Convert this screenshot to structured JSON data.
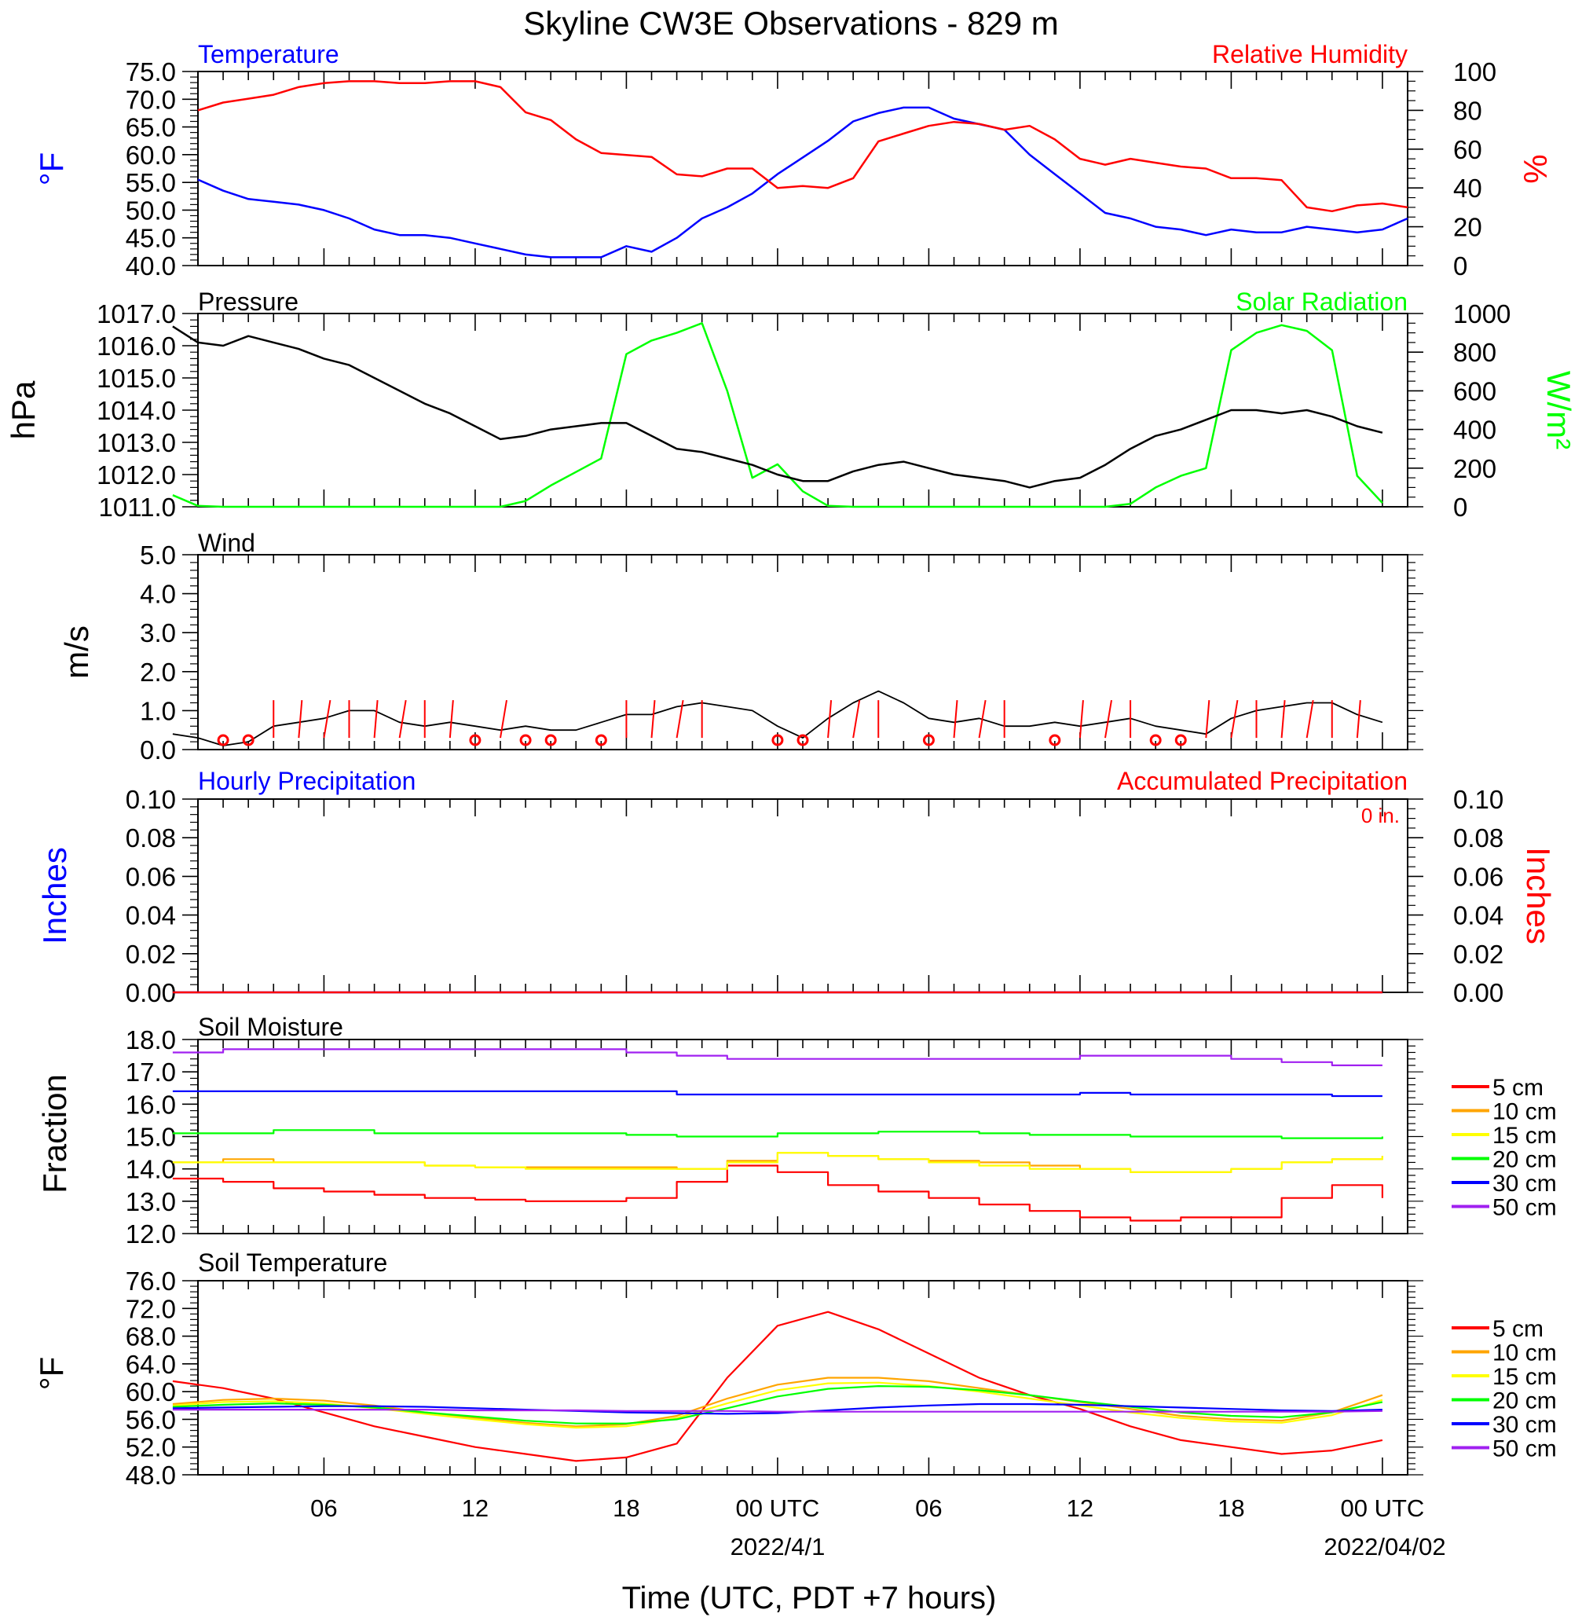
{
  "title": "Skyline CW3E Observations - 829 m",
  "x_axis": {
    "label": "Time (UTC, PDT +7 hours)",
    "hour_ticks": [
      "06",
      "12",
      "18",
      "00 UTC",
      "06",
      "12",
      "18",
      "00 UTC"
    ],
    "dates": [
      "2022/4/1",
      "2022/04/02"
    ]
  },
  "colors": {
    "temperature": "#0000ff",
    "humidity": "#ff0000",
    "pressure": "#000000",
    "solar": "#00ff00",
    "wind": "#000000",
    "wind_barbs": "#ff0000",
    "hourly_precip": "#0000ff",
    "accum_precip": "#ff0000",
    "soil": {
      "5 cm": "#ff0000",
      "10 cm": "#ffa500",
      "15 cm": "#ffff00",
      "20 cm": "#00ff00",
      "30 cm": "#0000ff",
      "50 cm": "#a020f0"
    }
  },
  "chart_data": [
    {
      "type": "line",
      "panel": "temperature_humidity",
      "title_left": "Temperature",
      "title_right": "Relative Humidity",
      "ylabel_left": "°F",
      "ylabel_right": "%",
      "y_ticks_left": [
        "75.0",
        "70.0",
        "65.0",
        "60.0",
        "55.0",
        "50.0",
        "45.0",
        "40.0"
      ],
      "y_ticks_right": [
        "100",
        "80",
        "60",
        "40",
        "20",
        "0"
      ],
      "ylim_left": [
        40,
        75
      ],
      "ylim_right": [
        0,
        100
      ],
      "x_hours": [
        1,
        2,
        3,
        4,
        5,
        6,
        7,
        8,
        9,
        10,
        11,
        12,
        13,
        14,
        15,
        16,
        17,
        18,
        19,
        20,
        21,
        22,
        23,
        24,
        25,
        26,
        27,
        28,
        29,
        30,
        31,
        32,
        33,
        34,
        35,
        36,
        37,
        38,
        39,
        40,
        41,
        42,
        43,
        44,
        45,
        46,
        47,
        48,
        49
      ],
      "series": [
        {
          "name": "Temperature",
          "axis": "left",
          "values": [
            55.5,
            53.5,
            52,
            51.5,
            51,
            50,
            48.5,
            46.5,
            45.5,
            45.5,
            45,
            44,
            43,
            42,
            41.5,
            41.5,
            41.5,
            43.5,
            42.5,
            45,
            48.5,
            50.5,
            53,
            56.5,
            59.5,
            62.5,
            66,
            67.5,
            68.5,
            68.5,
            66.5,
            65.5,
            64.5,
            60,
            56.5,
            53,
            49.5,
            48.5,
            47,
            46.5,
            45.5,
            46.5,
            46,
            46,
            47,
            46.5,
            46,
            46.5,
            48.5
          ]
        },
        {
          "name": "Relative Humidity",
          "axis": "right",
          "values": [
            80,
            84,
            86,
            88,
            92,
            94,
            95,
            95,
            94,
            94,
            95,
            95,
            92,
            79,
            75,
            65,
            58,
            57,
            56,
            47,
            46,
            50,
            50,
            40,
            41,
            40,
            45,
            64,
            68,
            72,
            74,
            73,
            70,
            72,
            65,
            55,
            52,
            55,
            53,
            51,
            50,
            45,
            45,
            44,
            30,
            28,
            31,
            32,
            30
          ]
        }
      ]
    },
    {
      "type": "line",
      "panel": "pressure_solar",
      "title_left": "Pressure",
      "title_right": "Solar Radiation",
      "ylabel_left": "hPa",
      "ylabel_right": "W/m²",
      "y_ticks_left": [
        "1017.0",
        "1016.0",
        "1015.0",
        "1014.0",
        "1013.0",
        "1012.0",
        "1011.0"
      ],
      "y_ticks_right": [
        "1000",
        "800",
        "600",
        "400",
        "200",
        "0"
      ],
      "ylim_left": [
        1011,
        1017
      ],
      "ylim_right": [
        0,
        1000
      ],
      "x_hours": [
        0,
        1,
        2,
        3,
        4,
        5,
        6,
        7,
        8,
        9,
        10,
        11,
        12,
        13,
        14,
        15,
        16,
        17,
        18,
        19,
        20,
        21,
        22,
        23,
        24,
        25,
        26,
        27,
        28,
        29,
        30,
        31,
        32,
        33,
        34,
        35,
        36,
        37,
        38,
        39,
        40,
        41,
        42,
        43,
        44,
        45,
        46,
        47,
        48
      ],
      "series": [
        {
          "name": "Pressure",
          "axis": "left",
          "values": [
            1016.6,
            1016.1,
            1016.0,
            1016.3,
            1016.1,
            1015.9,
            1015.6,
            1015.4,
            1015.0,
            1014.6,
            1014.2,
            1013.9,
            1013.5,
            1013.1,
            1013.2,
            1013.4,
            1013.5,
            1013.6,
            1013.6,
            1013.2,
            1012.8,
            1012.7,
            1012.5,
            1012.3,
            1012.0,
            1011.8,
            1011.8,
            1012.1,
            1012.3,
            1012.4,
            1012.2,
            1012.0,
            1011.9,
            1011.8,
            1011.6,
            1011.8,
            1011.9,
            1012.3,
            1012.8,
            1013.2,
            1013.4,
            1013.7,
            1014.0,
            1014.0,
            1013.9,
            1014.0,
            1013.8,
            1013.5,
            1013.3
          ]
        },
        {
          "name": "Solar Radiation",
          "axis": "right",
          "values": [
            60,
            5,
            0,
            0,
            0,
            0,
            0,
            0,
            0,
            0,
            0,
            0,
            0,
            0,
            30,
            110,
            180,
            250,
            790,
            860,
            900,
            950,
            600,
            150,
            220,
            80,
            5,
            0,
            0,
            0,
            0,
            0,
            0,
            0,
            0,
            0,
            0,
            0,
            15,
            100,
            160,
            200,
            810,
            900,
            940,
            910,
            810,
            160,
            20
          ]
        }
      ]
    },
    {
      "type": "line",
      "panel": "wind",
      "title_left": "Wind",
      "ylabel_left": "m/s",
      "y_ticks_left": [
        "5.0",
        "4.0",
        "3.0",
        "2.0",
        "1.0",
        "0.0"
      ],
      "ylim_left": [
        0,
        5
      ],
      "x_hours": [
        0,
        1,
        2,
        3,
        4,
        5,
        6,
        7,
        8,
        9,
        10,
        11,
        12,
        13,
        14,
        15,
        16,
        17,
        18,
        19,
        20,
        21,
        22,
        23,
        24,
        25,
        26,
        27,
        28,
        29,
        30,
        31,
        32,
        33,
        34,
        35,
        36,
        37,
        38,
        39,
        40,
        41,
        42,
        43,
        44,
        45,
        46,
        47,
        48
      ],
      "series": [
        {
          "name": "Wind speed",
          "axis": "left",
          "values": [
            0.4,
            0.3,
            0.1,
            0.2,
            0.6,
            0.7,
            0.8,
            1.0,
            1.0,
            0.7,
            0.6,
            0.7,
            0.6,
            0.5,
            0.6,
            0.5,
            0.5,
            0.7,
            0.9,
            0.9,
            1.1,
            1.2,
            1.1,
            1.0,
            0.6,
            0.3,
            0.8,
            1.2,
            1.5,
            1.2,
            0.8,
            0.7,
            0.8,
            0.6,
            0.6,
            0.7,
            0.6,
            0.7,
            0.8,
            0.6,
            0.5,
            0.4,
            0.8,
            1.0,
            1.1,
            1.2,
            1.2,
            0.9,
            0.7
          ]
        }
      ],
      "calm_circles_hours": [
        2.0,
        3.0,
        12.0,
        14.0,
        15.0,
        17.0,
        24.0,
        25.0,
        30.0,
        35.0,
        39.0,
        40.0
      ],
      "barb_hours": [
        4,
        5,
        6,
        7,
        8,
        9,
        10,
        11,
        13,
        18,
        19,
        20,
        21,
        26,
        27,
        28,
        31,
        32,
        33,
        36,
        37,
        38,
        41,
        42,
        43,
        44,
        45,
        46,
        47
      ]
    },
    {
      "type": "line",
      "panel": "precipitation",
      "title_left": "Hourly Precipitation",
      "title_right": "Accumulated Precipitation",
      "accumulated_label": "0 in.",
      "ylabel_left": "Inches",
      "ylabel_right": "Inches",
      "y_ticks_left": [
        "0.10",
        "0.08",
        "0.06",
        "0.04",
        "0.02",
        "0.00"
      ],
      "y_ticks_right": [
        "0.10",
        "0.08",
        "0.06",
        "0.04",
        "0.02",
        "0.00"
      ],
      "ylim_left": [
        0,
        0.1
      ],
      "ylim_right": [
        0,
        0.1
      ],
      "x_hours": [
        0,
        48
      ],
      "series": [
        {
          "name": "Hourly Precipitation",
          "axis": "left",
          "values": [
            0,
            0
          ]
        },
        {
          "name": "Accumulated Precipitation",
          "axis": "right",
          "values": [
            0,
            0
          ]
        }
      ]
    },
    {
      "type": "line",
      "panel": "soil_moisture",
      "title_left": "Soil Moisture",
      "ylabel_left": "Fraction",
      "y_ticks_left": [
        "18.0",
        "17.0",
        "16.0",
        "15.0",
        "14.0",
        "13.0",
        "12.0"
      ],
      "ylim_left": [
        12,
        18
      ],
      "legend": [
        "5 cm",
        "10 cm",
        "15 cm",
        "20 cm",
        "30 cm",
        "50 cm"
      ],
      "x_hours": [
        0,
        2,
        4,
        6,
        8,
        10,
        12,
        14,
        16,
        18,
        20,
        22,
        24,
        26,
        28,
        30,
        32,
        34,
        36,
        38,
        40,
        42,
        44,
        46,
        48
      ],
      "series": [
        {
          "name": "5 cm",
          "axis": "left",
          "values": [
            13.7,
            13.6,
            13.4,
            13.3,
            13.2,
            13.1,
            13.05,
            13.0,
            13.0,
            13.1,
            13.6,
            14.1,
            13.9,
            13.5,
            13.3,
            13.1,
            12.9,
            12.7,
            12.5,
            12.4,
            12.5,
            12.5,
            13.1,
            13.5,
            13.1
          ]
        },
        {
          "name": "10 cm",
          "axis": "left",
          "values": [
            14.2,
            14.3,
            14.2,
            14.2,
            14.2,
            14.1,
            14.05,
            14.05,
            14.05,
            14.05,
            14.0,
            14.25,
            14.5,
            14.4,
            14.3,
            14.25,
            14.2,
            14.1,
            14.0,
            13.9,
            13.9,
            14.0,
            14.2,
            14.3,
            14.4
          ]
        },
        {
          "name": "15 cm",
          "axis": "left",
          "values": [
            14.2,
            14.2,
            14.2,
            14.2,
            14.2,
            14.1,
            14.05,
            14.0,
            14.0,
            14.0,
            14.0,
            14.2,
            14.5,
            14.4,
            14.3,
            14.2,
            14.1,
            14.0,
            14.0,
            13.9,
            13.9,
            14.0,
            14.2,
            14.3,
            14.4
          ]
        },
        {
          "name": "20 cm",
          "axis": "left",
          "values": [
            15.1,
            15.1,
            15.2,
            15.2,
            15.1,
            15.1,
            15.1,
            15.1,
            15.1,
            15.05,
            15.0,
            15.0,
            15.1,
            15.1,
            15.15,
            15.15,
            15.1,
            15.05,
            15.05,
            15.0,
            15.0,
            15.0,
            14.95,
            14.95,
            15.0
          ]
        },
        {
          "name": "30 cm",
          "axis": "left",
          "values": [
            16.4,
            16.4,
            16.4,
            16.4,
            16.4,
            16.4,
            16.4,
            16.4,
            16.4,
            16.4,
            16.3,
            16.3,
            16.3,
            16.3,
            16.3,
            16.3,
            16.3,
            16.3,
            16.35,
            16.3,
            16.3,
            16.3,
            16.3,
            16.25,
            16.25
          ]
        },
        {
          "name": "50 cm",
          "axis": "left",
          "values": [
            17.6,
            17.7,
            17.7,
            17.7,
            17.7,
            17.7,
            17.7,
            17.7,
            17.7,
            17.6,
            17.5,
            17.4,
            17.4,
            17.4,
            17.4,
            17.4,
            17.4,
            17.4,
            17.5,
            17.5,
            17.5,
            17.4,
            17.3,
            17.2,
            17.2
          ]
        }
      ]
    },
    {
      "type": "line",
      "panel": "soil_temperature",
      "title_left": "Soil Temperature",
      "ylabel_left": "°F",
      "y_ticks_left": [
        "76.0",
        "72.0",
        "68.0",
        "64.0",
        "60.0",
        "56.0",
        "52.0",
        "48.0"
      ],
      "ylim_left": [
        48,
        76
      ],
      "legend": [
        "5 cm",
        "10 cm",
        "15 cm",
        "20 cm",
        "30 cm",
        "50 cm"
      ],
      "x_hours": [
        0,
        2,
        4,
        6,
        8,
        10,
        12,
        14,
        16,
        18,
        20,
        22,
        24,
        26,
        28,
        30,
        32,
        34,
        36,
        38,
        40,
        42,
        44,
        46,
        48
      ],
      "series": [
        {
          "name": "5 cm",
          "axis": "left",
          "values": [
            61.5,
            60.5,
            59.0,
            57.0,
            55.0,
            53.5,
            52.0,
            51.0,
            50.0,
            50.5,
            52.5,
            62.0,
            69.5,
            71.5,
            69.0,
            65.5,
            62.0,
            59.5,
            57.5,
            55.0,
            53.0,
            52.0,
            51.0,
            51.5,
            53.0
          ]
        },
        {
          "name": "10 cm",
          "axis": "left",
          "values": [
            58.2,
            58.8,
            59.0,
            58.7,
            58.0,
            57.0,
            56.2,
            55.5,
            55.0,
            55.3,
            56.5,
            59.0,
            61.0,
            62.0,
            62.0,
            61.5,
            60.5,
            59.5,
            58.5,
            57.5,
            56.5,
            56.0,
            55.8,
            57.0,
            59.5
          ]
        },
        {
          "name": "15 cm",
          "axis": "left",
          "values": [
            58.0,
            58.5,
            58.6,
            58.3,
            57.6,
            56.8,
            56.0,
            55.3,
            54.8,
            55.0,
            56.2,
            58.3,
            60.2,
            61.2,
            61.3,
            60.8,
            60.0,
            59.0,
            58.0,
            57.0,
            56.2,
            55.7,
            55.5,
            56.6,
            58.8
          ]
        },
        {
          "name": "20 cm",
          "axis": "left",
          "values": [
            57.8,
            58.1,
            58.3,
            58.1,
            57.7,
            57.0,
            56.4,
            55.8,
            55.4,
            55.4,
            56.0,
            57.6,
            59.3,
            60.4,
            60.8,
            60.7,
            60.2,
            59.5,
            58.6,
            57.8,
            57.0,
            56.5,
            56.3,
            57.0,
            58.5
          ]
        },
        {
          "name": "30 cm",
          "axis": "left",
          "values": [
            57.6,
            57.7,
            57.8,
            57.9,
            57.9,
            57.8,
            57.6,
            57.4,
            57.2,
            57.0,
            56.9,
            56.8,
            56.9,
            57.3,
            57.7,
            58.0,
            58.2,
            58.2,
            58.1,
            57.9,
            57.7,
            57.5,
            57.3,
            57.2,
            57.4
          ]
        },
        {
          "name": "50 cm",
          "axis": "left",
          "values": [
            57.4,
            57.4,
            57.4,
            57.4,
            57.4,
            57.4,
            57.3,
            57.3,
            57.3,
            57.2,
            57.2,
            57.2,
            57.1,
            57.1,
            57.1,
            57.1,
            57.1,
            57.1,
            57.1,
            57.1,
            57.1,
            57.1,
            57.1,
            57.1,
            57.2
          ]
        }
      ]
    }
  ]
}
